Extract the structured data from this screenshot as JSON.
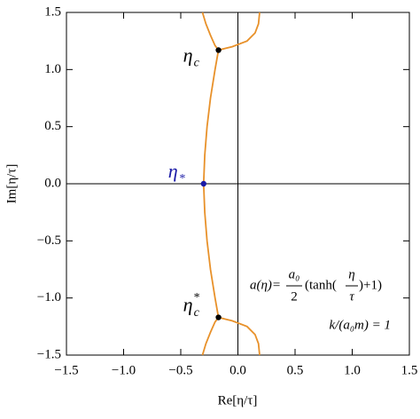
{
  "chart_data": {
    "type": "line",
    "xlabel": "Re[η/τ]",
    "ylabel": "Im[η/τ]",
    "xlim": [
      -1.5,
      1.5
    ],
    "ylim": [
      -1.5,
      1.5
    ],
    "xticks": [
      {
        "value": -1.5,
        "label": "−1.5"
      },
      {
        "value": -1.0,
        "label": "−1.0"
      },
      {
        "value": -0.5,
        "label": "−0.5"
      },
      {
        "value": 0.0,
        "label": "0.0"
      },
      0.5,
      {
        "value": 1.0,
        "label": "1.0"
      },
      1.5
    ],
    "yticks": [
      {
        "value": -1.5,
        "label": "−1.5"
      },
      {
        "value": -1.0,
        "label": "−1.0"
      },
      {
        "value": -0.5,
        "label": "−0.5"
      },
      {
        "value": 0.0,
        "label": "0.0"
      },
      0.5,
      {
        "value": 1.0,
        "label": "1.0"
      },
      1.5
    ],
    "series": [
      {
        "color": "#e8912a",
        "x": [
          -0.31,
          -0.28,
          -0.24,
          -0.2,
          -0.17
        ],
        "values": [
          1.5,
          1.4,
          1.3,
          1.21,
          1.17
        ]
      },
      {
        "color": "#e8912a",
        "x": [
          -0.17,
          -0.05,
          0.08,
          0.15,
          0.18,
          0.19
        ],
        "values": [
          1.17,
          1.2,
          1.25,
          1.32,
          1.4,
          1.5
        ]
      },
      {
        "color": "#e8912a",
        "x": [
          -0.17,
          -0.2,
          -0.24,
          -0.27,
          -0.29,
          -0.3,
          -0.29,
          -0.27,
          -0.24,
          -0.2,
          -0.17
        ],
        "values": [
          1.17,
          1.0,
          0.75,
          0.5,
          0.25,
          0.0,
          -0.25,
          -0.5,
          -0.75,
          -1.0,
          -1.17
        ]
      },
      {
        "color": "#e8912a",
        "x": [
          -0.31,
          -0.28,
          -0.24,
          -0.2,
          -0.17
        ],
        "values": [
          -1.5,
          -1.4,
          -1.3,
          -1.21,
          -1.17
        ]
      },
      {
        "color": "#e8912a",
        "x": [
          -0.17,
          -0.05,
          0.08,
          0.15,
          0.18,
          0.19
        ],
        "values": [
          -1.17,
          -1.2,
          -1.25,
          -1.32,
          -1.4,
          -1.5
        ]
      }
    ],
    "markers": {
      "x": [
        -0.17,
        -0.3,
        -0.17
      ],
      "values": [
        1.17,
        0.0,
        -1.17
      ],
      "colors": [
        "#000000",
        "#1a1aa6",
        "#000000"
      ]
    },
    "point_labels": [
      {
        "text": "η",
        "sub": "c",
        "color": "#000000"
      },
      {
        "text": "η",
        "sub": "*",
        "color": "#1a1aa6"
      },
      {
        "text": "η",
        "sub": "c",
        "sup": "*",
        "color": "#000000"
      }
    ],
    "formula": {
      "lhs": "a(η)=",
      "frac1_num": "a₀",
      "frac1_den": "2",
      "mid": "(tanh(",
      "frac2_num": "η",
      "frac2_den": "τ",
      "end": ")+1)"
    },
    "note": "k/(a₀m) = 1"
  }
}
